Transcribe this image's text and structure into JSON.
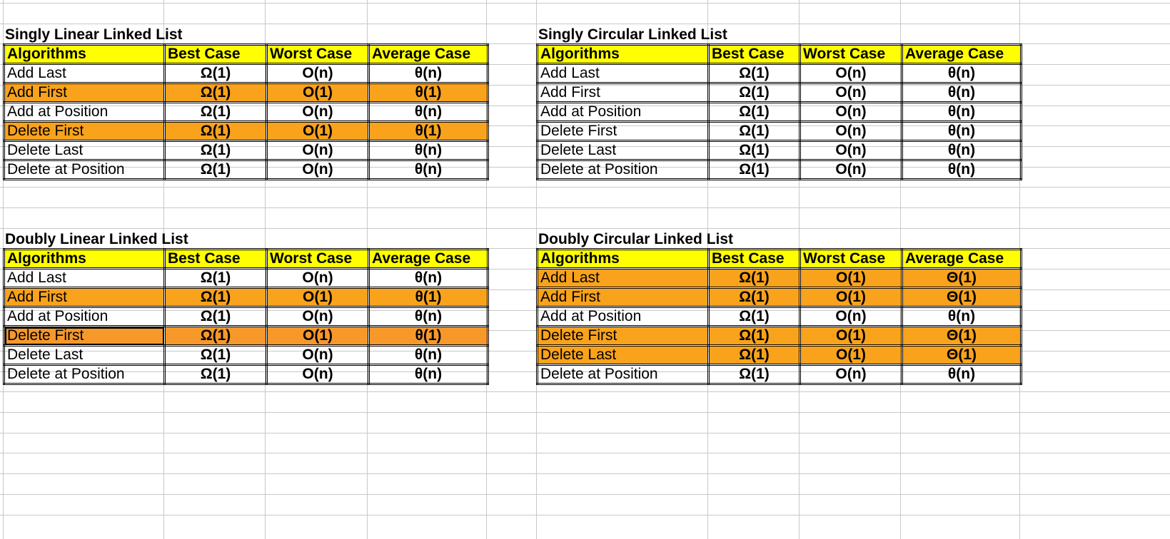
{
  "spreadsheet": {
    "blocks": [
      {
        "title": "Singly Linear Linked List",
        "headers": [
          "Algorithms",
          "Best Case",
          "Worst Case",
          "Average Case"
        ],
        "rows": [
          {
            "name": "Add Last",
            "best": "Ω(1)",
            "worst": "O(n)",
            "avg": "θ(n)",
            "highlight": false
          },
          {
            "name": "Add First",
            "best": "Ω(1)",
            "worst": "O(1)",
            "avg": "θ(1)",
            "highlight": true
          },
          {
            "name": "Add at Position",
            "best": "Ω(1)",
            "worst": "O(n)",
            "avg": "θ(n)",
            "highlight": false
          },
          {
            "name": "Delete First",
            "best": "Ω(1)",
            "worst": "O(1)",
            "avg": "θ(1)",
            "highlight": true
          },
          {
            "name": "Delete Last",
            "best": "Ω(1)",
            "worst": "O(n)",
            "avg": "θ(n)",
            "highlight": false
          },
          {
            "name": "Delete at Position",
            "best": "Ω(1)",
            "worst": "O(n)",
            "avg": "θ(n)",
            "highlight": false
          }
        ]
      },
      {
        "title": "Singly Circular Linked List",
        "headers": [
          "Algorithms",
          "Best Case",
          "Worst Case",
          "Average Case"
        ],
        "rows": [
          {
            "name": "Add Last",
            "best": "Ω(1)",
            "worst": "O(n)",
            "avg": "θ(n)",
            "highlight": false
          },
          {
            "name": "Add First",
            "best": "Ω(1)",
            "worst": "O(n)",
            "avg": "θ(n)",
            "highlight": false
          },
          {
            "name": "Add at Position",
            "best": "Ω(1)",
            "worst": "O(n)",
            "avg": "θ(n)",
            "highlight": false
          },
          {
            "name": "Delete First",
            "best": "Ω(1)",
            "worst": "O(n)",
            "avg": "θ(n)",
            "highlight": false
          },
          {
            "name": "Delete Last",
            "best": "Ω(1)",
            "worst": "O(n)",
            "avg": "θ(n)",
            "highlight": false
          },
          {
            "name": "Delete at Position",
            "best": "Ω(1)",
            "worst": "O(n)",
            "avg": "θ(n)",
            "highlight": false
          }
        ]
      },
      {
        "title": "Doubly Linear Linked List",
        "headers": [
          "Algorithms",
          "Best Case",
          "Worst Case",
          "Average Case"
        ],
        "rows": [
          {
            "name": "Add Last",
            "best": "Ω(1)",
            "worst": "O(n)",
            "avg": "θ(n)",
            "highlight": false
          },
          {
            "name": "Add First",
            "best": "Ω(1)",
            "worst": "O(1)",
            "avg": "θ(1)",
            "highlight": true
          },
          {
            "name": "Add at Position",
            "best": "Ω(1)",
            "worst": "O(n)",
            "avg": "θ(n)",
            "highlight": false
          },
          {
            "name": "Delete First",
            "best": "Ω(1)",
            "worst": "O(1)",
            "avg": "θ(1)",
            "highlight": true,
            "selected": true
          },
          {
            "name": "Delete Last",
            "best": "Ω(1)",
            "worst": "O(n)",
            "avg": "θ(n)",
            "highlight": false
          },
          {
            "name": "Delete at Position",
            "best": "Ω(1)",
            "worst": "O(n)",
            "avg": "θ(n)",
            "highlight": false
          }
        ]
      },
      {
        "title": "Doubly Circular Linked List",
        "headers": [
          "Algorithms",
          "Best Case",
          "Worst Case",
          "Average Case"
        ],
        "rows": [
          {
            "name": "Add Last",
            "best": "Ω(1)",
            "worst": "O(1)",
            "avg": "Θ(1)",
            "highlight": true
          },
          {
            "name": "Add First",
            "best": "Ω(1)",
            "worst": "O(1)",
            "avg": "Θ(1)",
            "highlight": true
          },
          {
            "name": "Add at Position",
            "best": "Ω(1)",
            "worst": "O(n)",
            "avg": "θ(n)",
            "highlight": false
          },
          {
            "name": "Delete First",
            "best": "Ω(1)",
            "worst": "O(1)",
            "avg": "Θ(1)",
            "highlight": true
          },
          {
            "name": "Delete Last",
            "best": "Ω(1)",
            "worst": "O(1)",
            "avg": "Θ(1)",
            "highlight": true
          },
          {
            "name": "Delete at Position",
            "best": "Ω(1)",
            "worst": "O(n)",
            "avg": "θ(n)",
            "highlight": false
          }
        ]
      }
    ],
    "colors": {
      "header_fill": "#ffff00",
      "highlight_fill": "#f9a21c",
      "gridline": "#c8c8c8",
      "border": "#000000"
    }
  }
}
